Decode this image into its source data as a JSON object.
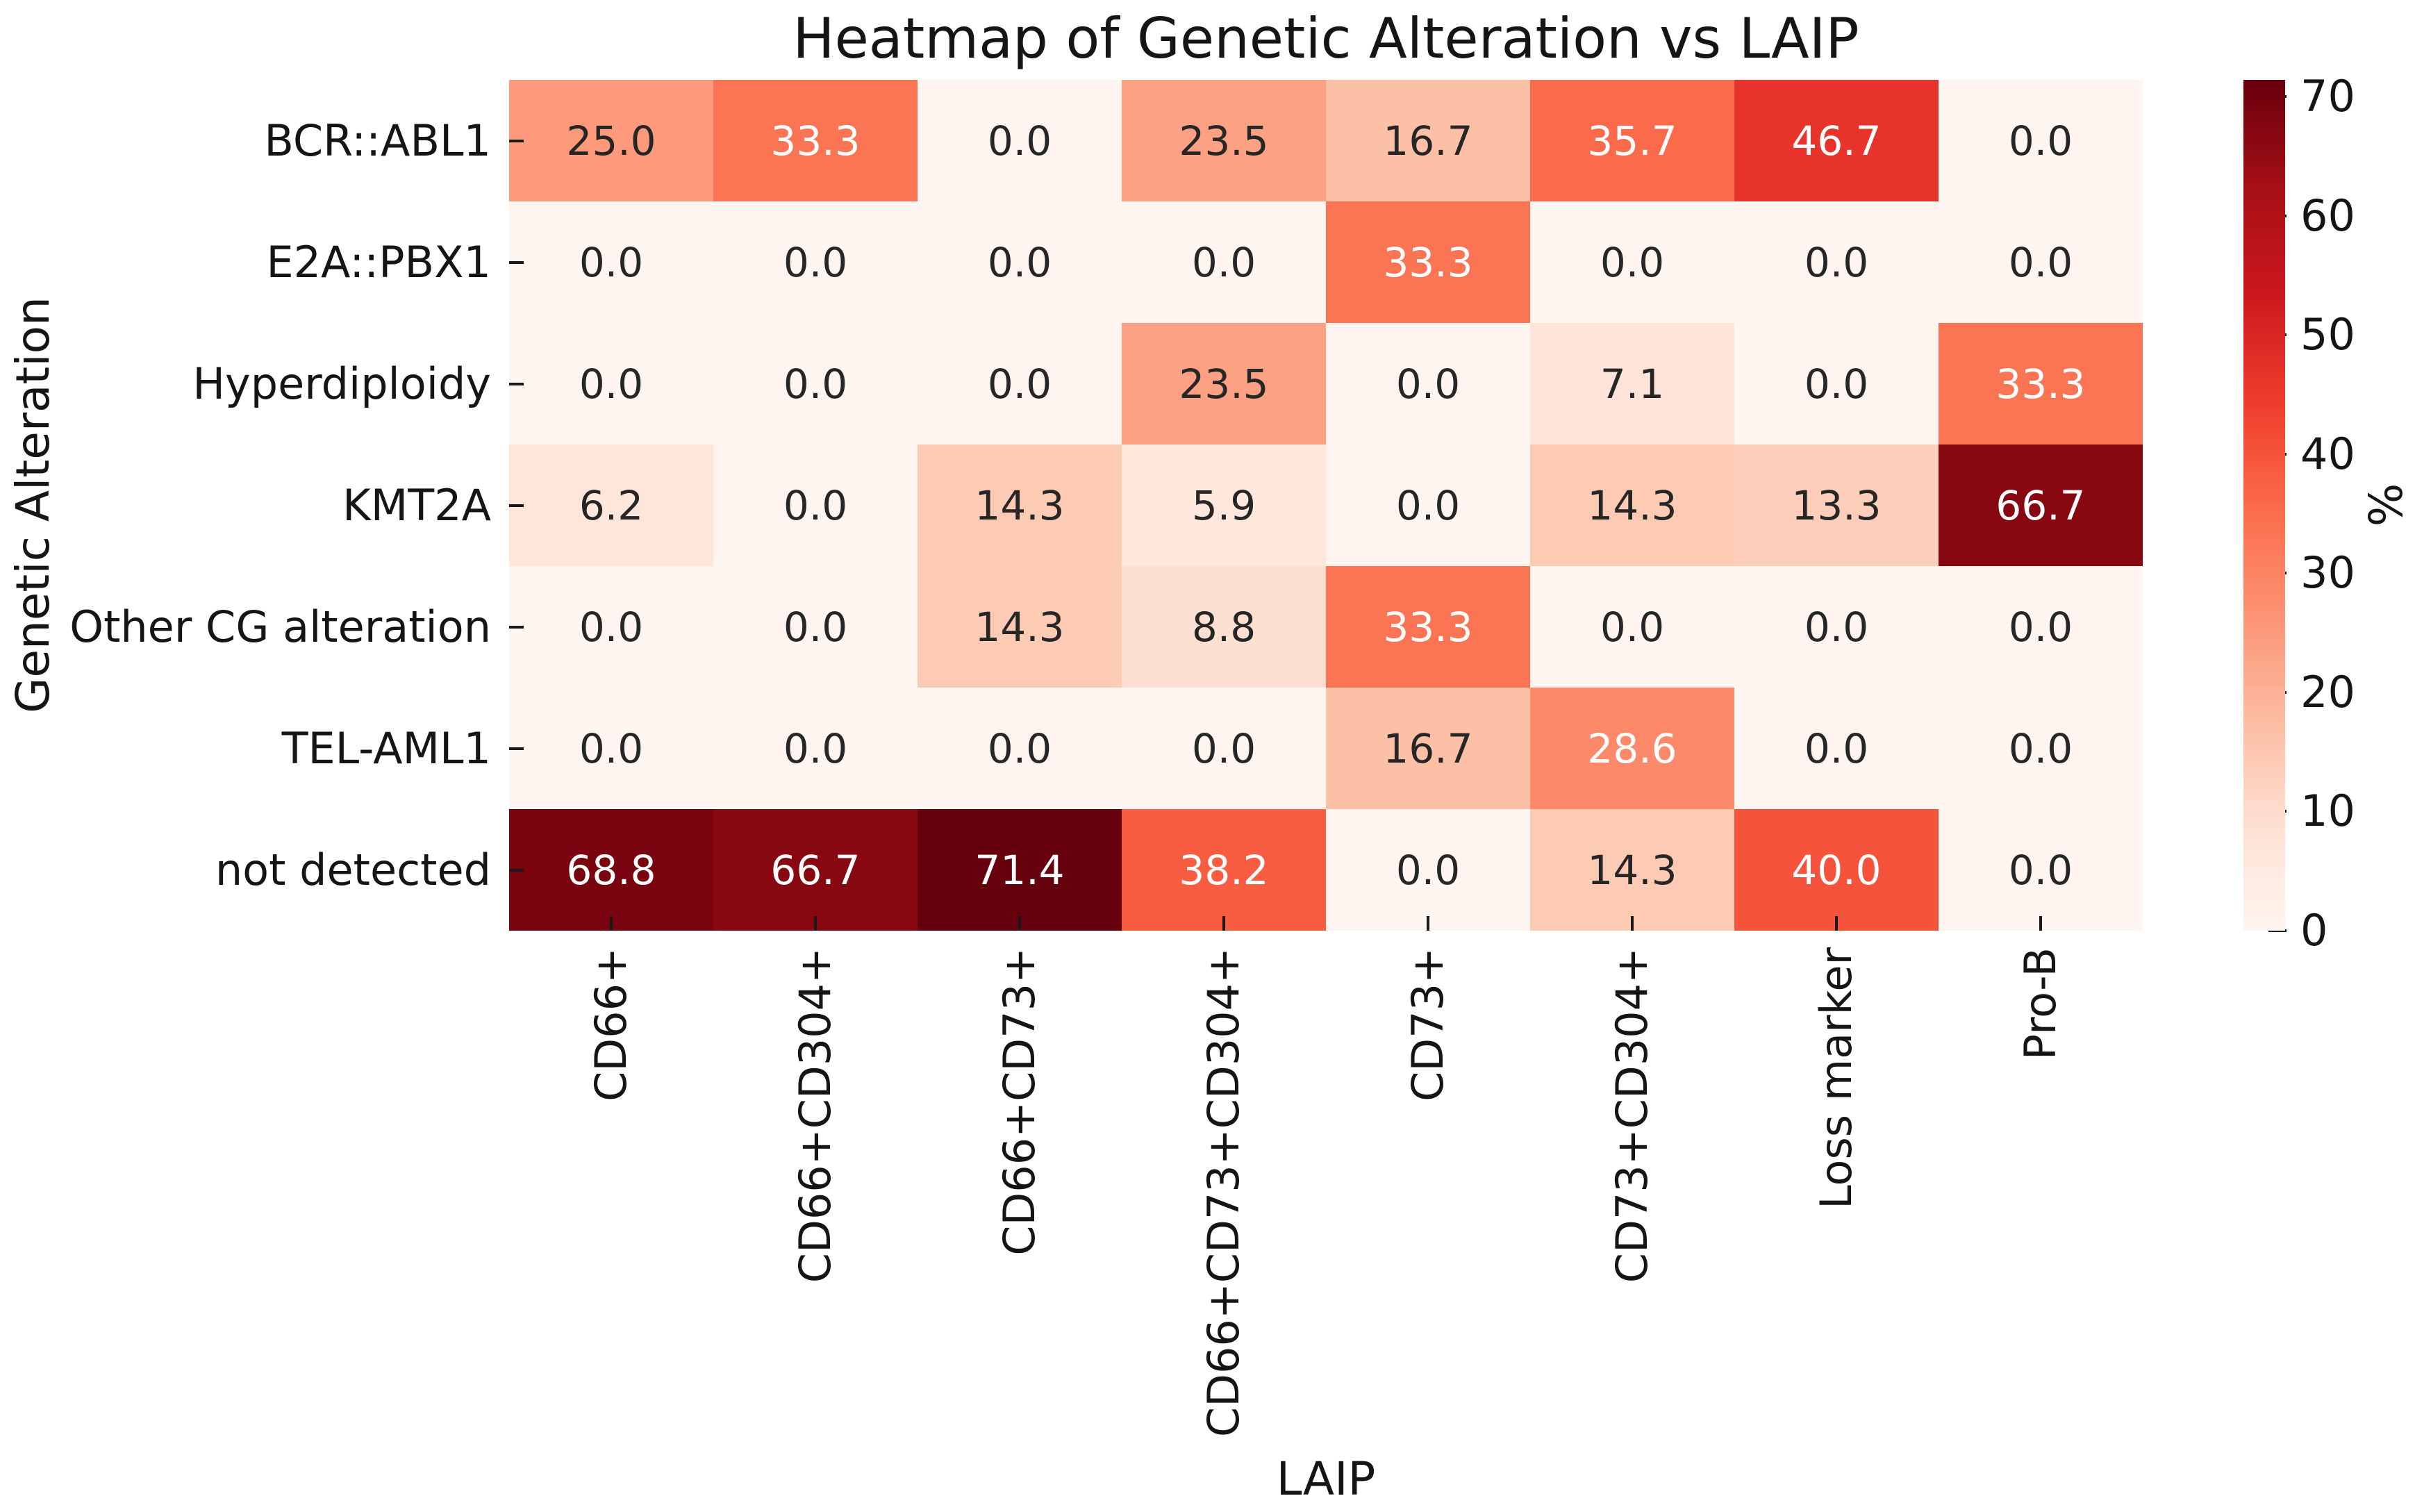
{
  "chart_data": {
    "type": "heatmap",
    "title": "Heatmap of Genetic Alteration vs LAIP",
    "xlabel": "LAIP",
    "ylabel": "Genetic Alteration",
    "colorbar_label": "%",
    "colormap": "Reds",
    "vmin": 0,
    "vmax": 71.4,
    "colorbar_ticks": [
      0,
      10,
      20,
      30,
      40,
      50,
      60,
      70
    ],
    "grid": false,
    "columns": [
      "CD66+",
      "CD66+CD304+",
      "CD66+CD73+",
      "CD66+CD73+CD304+",
      "CD73+",
      "CD73+CD304+",
      "Loss marker",
      "Pro-B"
    ],
    "rows": [
      "BCR::ABL1",
      "E2A::PBX1",
      "Hyperdiploidy",
      "KMT2A",
      "Other CG alteration",
      "TEL-AML1",
      "not detected"
    ],
    "values": [
      [
        25.0,
        33.3,
        0.0,
        23.5,
        16.7,
        35.7,
        46.7,
        0.0
      ],
      [
        0.0,
        0.0,
        0.0,
        0.0,
        33.3,
        0.0,
        0.0,
        0.0
      ],
      [
        0.0,
        0.0,
        0.0,
        23.5,
        0.0,
        7.1,
        0.0,
        33.3
      ],
      [
        6.2,
        0.0,
        14.3,
        5.9,
        0.0,
        14.3,
        13.3,
        66.7
      ],
      [
        0.0,
        0.0,
        14.3,
        8.8,
        33.3,
        0.0,
        0.0,
        0.0
      ],
      [
        0.0,
        0.0,
        0.0,
        0.0,
        16.7,
        28.6,
        0.0,
        0.0
      ],
      [
        68.8,
        66.7,
        71.4,
        38.2,
        0.0,
        14.3,
        40.0,
        0.0
      ]
    ],
    "annotation_format": "one_decimal",
    "colors": {
      "background": "#ffffff",
      "annotation_dark_text": "#262626",
      "annotation_light_text": "#ffffff",
      "colormap_low": "#fff5f0",
      "colormap_high": "#67000d"
    }
  }
}
